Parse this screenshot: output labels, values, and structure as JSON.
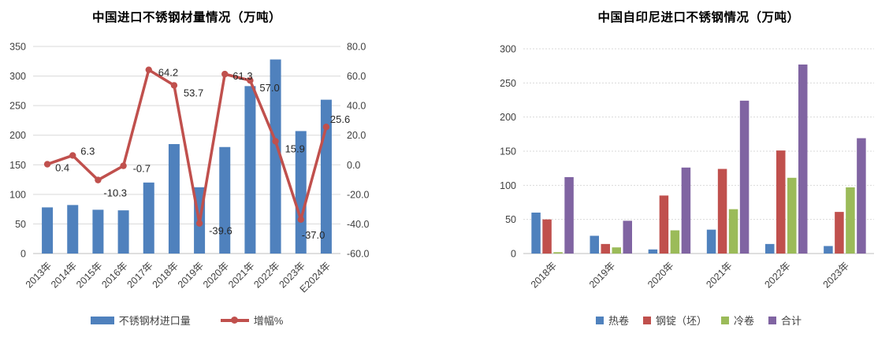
{
  "chart_data": [
    {
      "type": "combo",
      "title": "中国进口不锈钢材量情况（万吨）",
      "categories": [
        "2013年",
        "2014年",
        "2015年",
        "2016年",
        "2017年",
        "2018年",
        "2019年",
        "2020年",
        "2021年",
        "2022年",
        "2023年",
        "E2024年"
      ],
      "bar_series": {
        "name": "不锈钢材进口量",
        "color": "#4F81BD",
        "values": [
          78,
          82,
          74,
          73,
          120,
          185,
          112,
          180,
          283,
          328,
          207,
          260
        ]
      },
      "line_series": {
        "name": "增幅%",
        "color": "#C0504D",
        "values": [
          0.4,
          6.3,
          -10.3,
          -0.7,
          64.2,
          53.7,
          -39.6,
          61.3,
          57.0,
          15.9,
          -37.0,
          25.6
        ],
        "labels": [
          "0.4",
          "6.3",
          "-10.3",
          "-0.7",
          "64.2",
          "53.7",
          "-39.6",
          "61.3",
          "57.0",
          "15.9",
          "-37.0",
          "25.6"
        ]
      },
      "axis_left": {
        "min": 0,
        "max": 350,
        "step": 50,
        "decimals": 0
      },
      "axis_right": {
        "min": -60,
        "max": 80,
        "step": 20,
        "decimals": 1
      },
      "grid": true,
      "legend_position": "bottom"
    },
    {
      "type": "bar",
      "title": "中国自印尼进口不锈钢情况（万吨）",
      "categories": [
        "2018年",
        "2019年",
        "2020年",
        "2021年",
        "2022年",
        "2023年"
      ],
      "series": [
        {
          "name": "热卷",
          "color": "#4F81BD",
          "values": [
            60,
            26,
            6,
            35,
            14,
            11
          ]
        },
        {
          "name": "钢锭（坯）",
          "color": "#C0504D",
          "values": [
            50,
            14,
            85,
            124,
            151,
            61
          ]
        },
        {
          "name": "冷卷",
          "color": "#9BBB59",
          "values": [
            2,
            9,
            34,
            65,
            111,
            97
          ]
        },
        {
          "name": "合计",
          "color": "#8064A2",
          "values": [
            112,
            48,
            126,
            224,
            277,
            169
          ]
        }
      ],
      "axis_left": {
        "min": 0,
        "max": 300,
        "step": 50,
        "decimals": 0
      },
      "grid": true,
      "legend_position": "bottom"
    }
  ],
  "colors": {
    "gridline": "#D9D9D9",
    "axis_line": "#BFBFBF",
    "tick_text": "#404040",
    "data_label_text": "#262626"
  }
}
